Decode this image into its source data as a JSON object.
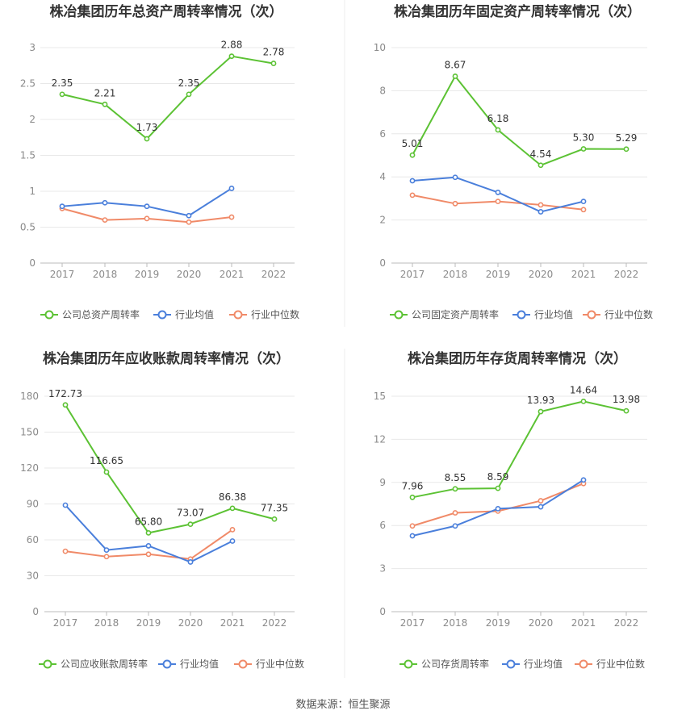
{
  "colors": {
    "company": "#5cc234",
    "industry_avg": "#4a7fdb",
    "industry_median": "#f08a68"
  },
  "source": "数据来源：恒生聚源",
  "chart_data": [
    {
      "type": "line",
      "title": "株冶集团历年总资产周转率情况（次）",
      "categories": [
        "2017",
        "2018",
        "2019",
        "2020",
        "2021",
        "2022"
      ],
      "ylim": [
        0,
        3
      ],
      "yticks": [
        "0",
        "0.5",
        "1",
        "1.5",
        "2",
        "2.5",
        "3"
      ],
      "series": [
        {
          "name": "公司总资产周转率",
          "values": [
            2.35,
            2.21,
            1.73,
            2.35,
            2.88,
            2.78
          ],
          "labels": [
            "2.35",
            "2.21",
            "1.73",
            "2.35",
            "2.88",
            "2.78"
          ]
        },
        {
          "name": "行业均值",
          "values": [
            0.79,
            0.84,
            0.79,
            0.66,
            1.04,
            null
          ]
        },
        {
          "name": "行业中位数",
          "values": [
            0.76,
            0.6,
            0.62,
            0.57,
            0.64,
            null
          ]
        }
      ]
    },
    {
      "type": "line",
      "title": "株冶集团历年固定资产周转率情况（次）",
      "categories": [
        "2017",
        "2018",
        "2019",
        "2020",
        "2021",
        "2022"
      ],
      "ylim": [
        0,
        10
      ],
      "yticks": [
        "0",
        "2",
        "4",
        "6",
        "8",
        "10"
      ],
      "series": [
        {
          "name": "公司固定资产周转率",
          "values": [
            5.01,
            8.67,
            6.18,
            4.54,
            5.3,
            5.29
          ],
          "labels": [
            "5.01",
            "8.67",
            "6.18",
            "4.54",
            "5.30",
            "5.29"
          ]
        },
        {
          "name": "行业均值",
          "values": [
            3.82,
            3.98,
            3.28,
            2.38,
            2.86,
            null
          ]
        },
        {
          "name": "行业中位数",
          "values": [
            3.15,
            2.76,
            2.86,
            2.7,
            2.48,
            null
          ]
        }
      ]
    },
    {
      "type": "line",
      "title": "株冶集团历年应收账款周转率情况（次）",
      "categories": [
        "2017",
        "2018",
        "2019",
        "2020",
        "2021",
        "2022"
      ],
      "ylim": [
        0,
        180
      ],
      "yticks": [
        "0",
        "30",
        "60",
        "90",
        "120",
        "150",
        "180"
      ],
      "series": [
        {
          "name": "公司应收账款周转率",
          "values": [
            172.73,
            116.65,
            65.8,
            73.07,
            86.38,
            77.35
          ],
          "labels": [
            "172.73",
            "116.65",
            "65.80",
            "73.07",
            "86.38",
            "77.35"
          ]
        },
        {
          "name": "行业均值",
          "values": [
            89,
            51.5,
            55,
            41.5,
            59,
            null
          ]
        },
        {
          "name": "行业中位数",
          "values": [
            50.5,
            46,
            48,
            44,
            68.5,
            null
          ]
        }
      ]
    },
    {
      "type": "line",
      "title": "株冶集团历年存货周转率情况（次）",
      "categories": [
        "2017",
        "2018",
        "2019",
        "2020",
        "2021",
        "2022"
      ],
      "ylim": [
        0,
        15
      ],
      "yticks": [
        "0",
        "3",
        "6",
        "9",
        "12",
        "15"
      ],
      "series": [
        {
          "name": "公司存货周转率",
          "values": [
            7.96,
            8.55,
            8.59,
            13.93,
            14.64,
            13.98
          ],
          "labels": [
            "7.96",
            "8.55",
            "8.59",
            "13.93",
            "14.64",
            "13.98"
          ]
        },
        {
          "name": "行业均值",
          "values": [
            5.28,
            5.97,
            7.17,
            7.3,
            9.17,
            null
          ]
        },
        {
          "name": "行业中位数",
          "values": [
            5.97,
            6.88,
            7.0,
            7.72,
            8.92,
            null
          ]
        }
      ]
    }
  ]
}
